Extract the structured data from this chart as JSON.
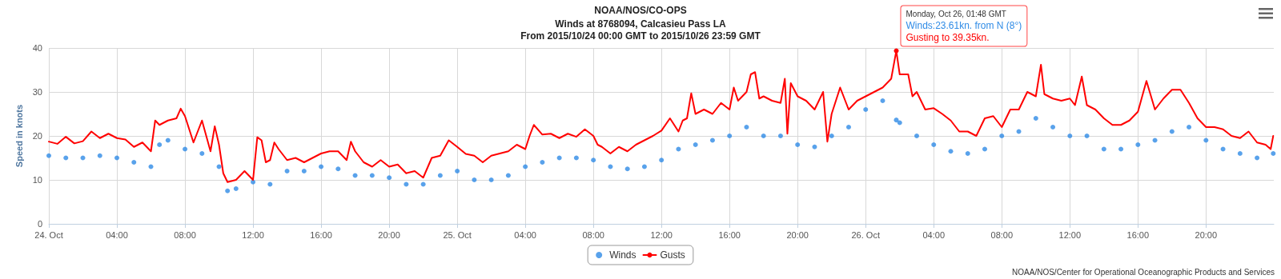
{
  "chart_data": {
    "type": "line",
    "title": "NOAA/NOS/CO-OPS",
    "subtitle": "Winds at 8768094, Calcasieu Pass LA\nFrom 2015/10/24 00:00 GMT to 2015/10/26 23:59 GMT",
    "ylabel": "Speed in knots",
    "xlim": [
      "2015-10-24T00:00",
      "2015-10-26T23:59"
    ],
    "ylim": [
      0,
      40
    ],
    "yticks": [
      0,
      10,
      20,
      30,
      40
    ],
    "xticks": [
      {
        "value": "2015-10-24T00:00",
        "label": "24. Oct"
      },
      {
        "value": "2015-10-24T04:00",
        "label": "04:00"
      },
      {
        "value": "2015-10-24T08:00",
        "label": "08:00"
      },
      {
        "value": "2015-10-24T12:00",
        "label": "12:00"
      },
      {
        "value": "2015-10-24T16:00",
        "label": "16:00"
      },
      {
        "value": "2015-10-24T20:00",
        "label": "20:00"
      },
      {
        "value": "2015-10-25T00:00",
        "label": "25. Oct"
      },
      {
        "value": "2015-10-25T04:00",
        "label": "04:00"
      },
      {
        "value": "2015-10-25T08:00",
        "label": "08:00"
      },
      {
        "value": "2015-10-25T12:00",
        "label": "12:00"
      },
      {
        "value": "2015-10-25T16:00",
        "label": "16:00"
      },
      {
        "value": "2015-10-25T20:00",
        "label": "20:00"
      },
      {
        "value": "2015-10-26T00:00",
        "label": "26. Oct"
      },
      {
        "value": "2015-10-26T04:00",
        "label": "04:00"
      },
      {
        "value": "2015-10-26T08:00",
        "label": "08:00"
      },
      {
        "value": "2015-10-26T12:00",
        "label": "12:00"
      },
      {
        "value": "2015-10-26T16:00",
        "label": "16:00"
      },
      {
        "value": "2015-10-26T20:00",
        "label": "20:00"
      }
    ],
    "grid": true,
    "legend": "bottom",
    "series": [
      {
        "name": "Winds",
        "type": "scatter",
        "marker": "circle",
        "color": "#2f8be6",
        "x": [
          "2015-10-24T00:00",
          "2015-10-24T01:00",
          "2015-10-24T02:00",
          "2015-10-24T03:00",
          "2015-10-24T04:00",
          "2015-10-24T05:00",
          "2015-10-24T06:00",
          "2015-10-24T06:30",
          "2015-10-24T07:00",
          "2015-10-24T08:00",
          "2015-10-24T09:00",
          "2015-10-24T10:00",
          "2015-10-24T10:30",
          "2015-10-24T11:00",
          "2015-10-24T12:00",
          "2015-10-24T13:00",
          "2015-10-24T14:00",
          "2015-10-24T15:00",
          "2015-10-24T16:00",
          "2015-10-24T17:00",
          "2015-10-24T18:00",
          "2015-10-24T19:00",
          "2015-10-24T20:00",
          "2015-10-24T21:00",
          "2015-10-24T22:00",
          "2015-10-24T23:00",
          "2015-10-25T00:00",
          "2015-10-25T01:00",
          "2015-10-25T02:00",
          "2015-10-25T03:00",
          "2015-10-25T04:00",
          "2015-10-25T05:00",
          "2015-10-25T06:00",
          "2015-10-25T07:00",
          "2015-10-25T08:00",
          "2015-10-25T09:00",
          "2015-10-25T10:00",
          "2015-10-25T11:00",
          "2015-10-25T12:00",
          "2015-10-25T13:00",
          "2015-10-25T14:00",
          "2015-10-25T15:00",
          "2015-10-25T16:00",
          "2015-10-25T17:00",
          "2015-10-25T18:00",
          "2015-10-25T19:00",
          "2015-10-25T20:00",
          "2015-10-25T21:00",
          "2015-10-25T22:00",
          "2015-10-25T23:00",
          "2015-10-26T00:00",
          "2015-10-26T01:00",
          "2015-10-26T01:48",
          "2015-10-26T02:00",
          "2015-10-26T03:00",
          "2015-10-26T04:00",
          "2015-10-26T05:00",
          "2015-10-26T06:00",
          "2015-10-26T07:00",
          "2015-10-26T08:00",
          "2015-10-26T09:00",
          "2015-10-26T10:00",
          "2015-10-26T11:00",
          "2015-10-26T12:00",
          "2015-10-26T13:00",
          "2015-10-26T14:00",
          "2015-10-26T15:00",
          "2015-10-26T16:00",
          "2015-10-26T17:00",
          "2015-10-26T18:00",
          "2015-10-26T19:00",
          "2015-10-26T20:00",
          "2015-10-26T21:00",
          "2015-10-26T22:00",
          "2015-10-26T23:00",
          "2015-10-26T23:57"
        ],
        "values": [
          15.5,
          15,
          15,
          15.5,
          15,
          14,
          13,
          18,
          19,
          17,
          16,
          13,
          7.5,
          8,
          9.5,
          9,
          12,
          12,
          13,
          12.5,
          11,
          11,
          10.5,
          9,
          9,
          11,
          12,
          10,
          10,
          11,
          13,
          14,
          15,
          15,
          14.5,
          13,
          12.5,
          13,
          14.5,
          17,
          18,
          19,
          20,
          22,
          20,
          20,
          18,
          17.5,
          20,
          22,
          26,
          28,
          23.61,
          23,
          20,
          18,
          16.5,
          16,
          17,
          20,
          21,
          24,
          22,
          20,
          20,
          17,
          17,
          18,
          19,
          21,
          22,
          19,
          17,
          16,
          15,
          16
        ]
      },
      {
        "name": "Gusts",
        "type": "line",
        "marker": "none",
        "color": "#ff0000",
        "x": [
          "2015-10-24T00:00",
          "2015-10-24T00:30",
          "2015-10-24T01:00",
          "2015-10-24T01:30",
          "2015-10-24T02:00",
          "2015-10-24T02:30",
          "2015-10-24T03:00",
          "2015-10-24T03:30",
          "2015-10-24T04:00",
          "2015-10-24T04:30",
          "2015-10-24T05:00",
          "2015-10-24T05:30",
          "2015-10-24T06:00",
          "2015-10-24T06:15",
          "2015-10-24T06:30",
          "2015-10-24T07:00",
          "2015-10-24T07:30",
          "2015-10-24T07:45",
          "2015-10-24T08:00",
          "2015-10-24T08:30",
          "2015-10-24T09:00",
          "2015-10-24T09:30",
          "2015-10-24T09:45",
          "2015-10-24T10:00",
          "2015-10-24T10:15",
          "2015-10-24T10:30",
          "2015-10-24T11:00",
          "2015-10-24T11:30",
          "2015-10-24T12:00",
          "2015-10-24T12:15",
          "2015-10-24T12:30",
          "2015-10-24T12:45",
          "2015-10-24T13:00",
          "2015-10-24T13:15",
          "2015-10-24T13:30",
          "2015-10-24T14:00",
          "2015-10-24T14:30",
          "2015-10-24T15:00",
          "2015-10-24T15:30",
          "2015-10-24T16:00",
          "2015-10-24T16:30",
          "2015-10-24T17:00",
          "2015-10-24T17:30",
          "2015-10-24T17:45",
          "2015-10-24T18:00",
          "2015-10-24T18:30",
          "2015-10-24T19:00",
          "2015-10-24T19:30",
          "2015-10-24T20:00",
          "2015-10-24T20:30",
          "2015-10-24T21:00",
          "2015-10-24T21:30",
          "2015-10-24T22:00",
          "2015-10-24T22:30",
          "2015-10-24T23:00",
          "2015-10-24T23:30",
          "2015-10-25T00:00",
          "2015-10-25T00:30",
          "2015-10-25T01:00",
          "2015-10-25T01:30",
          "2015-10-25T02:00",
          "2015-10-25T02:30",
          "2015-10-25T03:00",
          "2015-10-25T03:30",
          "2015-10-25T04:00",
          "2015-10-25T04:15",
          "2015-10-25T04:30",
          "2015-10-25T05:00",
          "2015-10-25T05:30",
          "2015-10-25T06:00",
          "2015-10-25T06:30",
          "2015-10-25T07:00",
          "2015-10-25T07:30",
          "2015-10-25T08:00",
          "2015-10-25T08:15",
          "2015-10-25T08:30",
          "2015-10-25T09:00",
          "2015-10-25T09:30",
          "2015-10-25T10:00",
          "2015-10-25T10:30",
          "2015-10-25T11:00",
          "2015-10-25T11:30",
          "2015-10-25T12:00",
          "2015-10-25T12:30",
          "2015-10-25T13:00",
          "2015-10-25T13:15",
          "2015-10-25T13:30",
          "2015-10-25T13:45",
          "2015-10-25T14:00",
          "2015-10-25T14:30",
          "2015-10-25T15:00",
          "2015-10-25T15:30",
          "2015-10-25T16:00",
          "2015-10-25T16:15",
          "2015-10-25T16:30",
          "2015-10-25T17:00",
          "2015-10-25T17:15",
          "2015-10-25T17:30",
          "2015-10-25T17:45",
          "2015-10-25T18:00",
          "2015-10-25T18:30",
          "2015-10-25T19:00",
          "2015-10-25T19:15",
          "2015-10-25T19:24",
          "2015-10-25T19:36",
          "2015-10-25T20:00",
          "2015-10-25T20:30",
          "2015-10-25T21:00",
          "2015-10-25T21:30",
          "2015-10-25T21:45",
          "2015-10-25T22:00",
          "2015-10-25T22:30",
          "2015-10-25T23:00",
          "2015-10-25T23:30",
          "2015-10-26T00:00",
          "2015-10-26T00:30",
          "2015-10-26T01:00",
          "2015-10-26T01:30",
          "2015-10-26T01:48",
          "2015-10-26T02:00",
          "2015-10-26T02:30",
          "2015-10-26T02:45",
          "2015-10-26T03:00",
          "2015-10-26T03:30",
          "2015-10-26T04:00",
          "2015-10-26T04:30",
          "2015-10-26T05:00",
          "2015-10-26T05:30",
          "2015-10-26T06:00",
          "2015-10-26T06:30",
          "2015-10-26T07:00",
          "2015-10-26T07:30",
          "2015-10-26T08:00",
          "2015-10-26T08:30",
          "2015-10-26T09:00",
          "2015-10-26T09:30",
          "2015-10-26T10:00",
          "2015-10-26T10:18",
          "2015-10-26T10:30",
          "2015-10-26T11:00",
          "2015-10-26T11:30",
          "2015-10-26T12:00",
          "2015-10-26T12:18",
          "2015-10-26T12:42",
          "2015-10-26T13:00",
          "2015-10-26T13:30",
          "2015-10-26T14:00",
          "2015-10-26T14:30",
          "2015-10-26T15:00",
          "2015-10-26T15:30",
          "2015-10-26T16:00",
          "2015-10-26T16:30",
          "2015-10-26T17:00",
          "2015-10-26T17:30",
          "2015-10-26T18:00",
          "2015-10-26T18:30",
          "2015-10-26T19:00",
          "2015-10-26T19:30",
          "2015-10-26T20:00",
          "2015-10-26T20:30",
          "2015-10-26T21:00",
          "2015-10-26T21:30",
          "2015-10-26T22:00",
          "2015-10-26T22:30",
          "2015-10-26T23:00",
          "2015-10-26T23:30",
          "2015-10-26T23:48",
          "2015-10-26T23:57"
        ],
        "values": [
          18.7,
          18.2,
          19.8,
          18.3,
          18.8,
          21,
          19.5,
          20.5,
          19.5,
          19.2,
          17.5,
          18.5,
          16.5,
          23.5,
          22.5,
          23.5,
          24,
          26.2,
          24.5,
          18.5,
          23.5,
          16.5,
          22.2,
          18,
          11.5,
          9.5,
          10,
          12,
          10,
          19.7,
          19,
          14,
          14.5,
          18.5,
          17,
          14.5,
          15,
          14,
          15,
          16,
          16.5,
          16.5,
          14.5,
          18.7,
          16.5,
          14,
          13,
          14.5,
          13,
          13.5,
          11.5,
          12,
          10.5,
          15,
          15.5,
          19,
          17.5,
          15.9,
          15.5,
          14,
          15.5,
          16,
          16.5,
          18,
          17,
          20,
          22.5,
          20.3,
          20.5,
          19.5,
          20.5,
          19.8,
          21.5,
          20,
          18,
          17.5,
          16,
          17.5,
          16.5,
          18,
          19,
          20,
          21.2,
          24,
          21,
          23.5,
          24,
          29.7,
          25,
          26,
          25,
          27.5,
          26,
          31,
          28,
          30,
          34,
          34.5,
          28.5,
          29,
          28,
          27.5,
          33,
          20.5,
          32,
          29,
          28,
          26,
          30,
          18.7,
          25,
          31,
          26,
          28,
          29,
          30,
          31,
          33,
          39.35,
          34,
          34,
          29,
          30,
          26,
          26.3,
          25,
          23.5,
          21,
          21,
          20,
          24,
          24.5,
          22,
          26,
          26,
          30,
          29,
          36.2,
          29.5,
          28.5,
          28,
          28.5,
          27,
          33.5,
          27,
          26,
          24,
          22.5,
          22.5,
          23.5,
          25.5,
          32.5,
          26,
          28.5,
          30.5,
          30.5,
          27.5,
          24,
          22,
          22,
          21.5,
          20,
          19.5,
          21,
          18.5,
          18,
          17,
          20
        ]
      }
    ],
    "annotations": [
      {
        "text": "Monday, Oct 26, 01:48 GMT\nWinds:23.61kn. from N (8°)\nGusting to 39.35kn.",
        "x": "2015-10-26T01:48",
        "y": 39.35
      },
      "NOAA/NOS/Center for Operational Oceanographic Products and Services"
    ]
  }
}
